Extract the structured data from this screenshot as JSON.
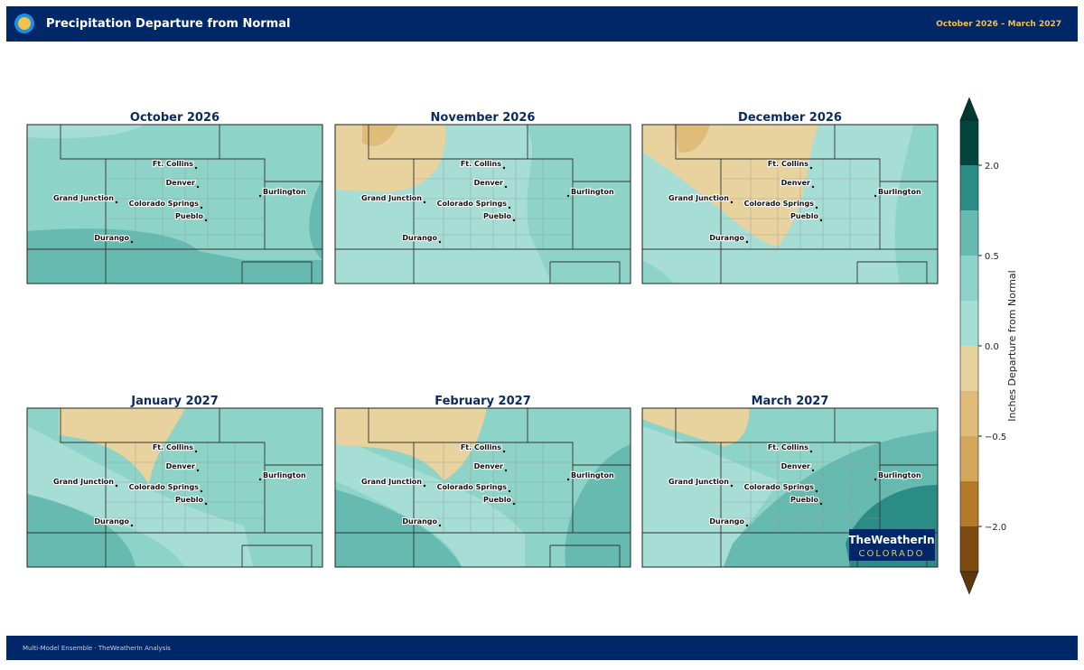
{
  "header": {
    "title": "Precipitation Departure from Normal",
    "date_range": "October 2026 – March 2027"
  },
  "panels": [
    {
      "title": "October 2026"
    },
    {
      "title": "November 2026"
    },
    {
      "title": "December 2026"
    },
    {
      "title": "January 2027"
    },
    {
      "title": "February 2027"
    },
    {
      "title": "March 2027"
    }
  ],
  "cities": [
    {
      "name": "Ft. Collins"
    },
    {
      "name": "Denver"
    },
    {
      "name": "Grand Junction"
    },
    {
      "name": "Colorado Springs"
    },
    {
      "name": "Pueblo"
    },
    {
      "name": "Burlington"
    },
    {
      "name": "Durango"
    }
  ],
  "colorbar": {
    "label": "Inches Departure from Normal",
    "ticks": [
      "2.0",
      "0.5",
      "0.0",
      "−0.5",
      "−2.0"
    ]
  },
  "logo": {
    "line1": "TheWeatherIn",
    "line2": "COLORADO"
  },
  "footer": {
    "source": "Multi-Model Ensemble · TheWeatherIn Analysis"
  }
}
